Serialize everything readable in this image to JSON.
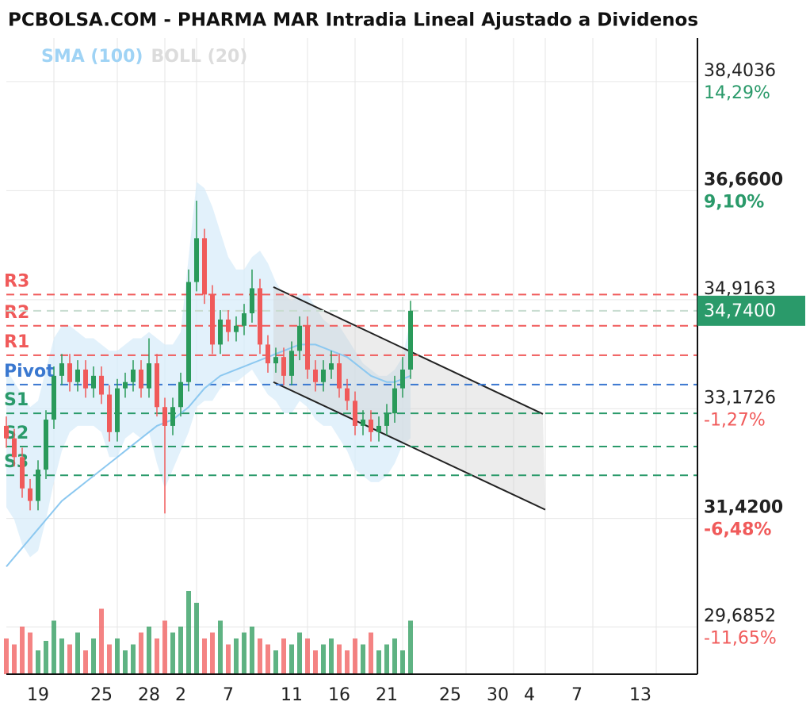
{
  "chart_data": {
    "type": "candlestick",
    "title": "PCBOLSA.COM - PHARMA MAR Intradia Lineal Ajustado a Dividenos",
    "legend": [
      {
        "name": "SMA (100)",
        "color": "#9fd3f5"
      },
      {
        "name": "BOLL (20)",
        "color": "#dcdcdc"
      }
    ],
    "up_color": "#2a9a5a",
    "down_color": "#f05a5a",
    "x": [
      -2,
      -1.5,
      -1,
      -0.5,
      0,
      0.5,
      1,
      1.5,
      2,
      2.5,
      3,
      3.5,
      4,
      4.5,
      5,
      5.5,
      6,
      6.5,
      7,
      7.5,
      8,
      8.5,
      9,
      9.5,
      10,
      10.5,
      11,
      11.5,
      12,
      12.5,
      13,
      13.5,
      14,
      14.5,
      15,
      15.5,
      16,
      16.5,
      17,
      17.5,
      18,
      18.5,
      19,
      19.5,
      20,
      20.5,
      21,
      21.5,
      22,
      22.5,
      23,
      23.5
    ],
    "open": [
      32.9,
      32.7,
      32.4,
      31.9,
      31.7,
      32.2,
      33.0,
      33.7,
      33.9,
      33.6,
      33.8,
      33.5,
      33.7,
      33.4,
      32.8,
      33.5,
      33.6,
      33.8,
      33.5,
      33.9,
      33.2,
      32.9,
      33.2,
      33.6,
      35.2,
      35.9,
      35.0,
      34.2,
      34.6,
      34.4,
      34.5,
      34.7,
      35.1,
      34.2,
      33.9,
      34.0,
      33.7,
      34.1,
      34.5,
      33.8,
      33.6,
      33.8,
      33.9,
      33.5,
      33.3,
      32.9,
      33.0,
      32.8,
      32.9,
      33.1,
      33.5,
      33.8
    ],
    "high": [
      33.05,
      32.85,
      32.55,
      32.05,
      32.35,
      33.15,
      33.85,
      34.05,
      34.05,
      33.95,
      33.95,
      33.85,
      33.85,
      33.55,
      33.65,
      33.75,
      33.95,
      33.95,
      34.3,
      34.05,
      33.35,
      33.35,
      33.75,
      35.4,
      36.5,
      36.05,
      35.15,
      34.75,
      34.75,
      34.65,
      34.85,
      35.4,
      35.25,
      34.35,
      34.15,
      34.15,
      34.25,
      34.65,
      34.65,
      33.95,
      33.95,
      34.1,
      34.05,
      33.65,
      33.45,
      33.15,
      33.15,
      33.05,
      33.25,
      33.7,
      34.0,
      34.9
    ],
    "low": [
      32.55,
      32.25,
      31.75,
      31.55,
      31.55,
      32.05,
      32.85,
      33.55,
      33.45,
      33.45,
      33.35,
      33.35,
      33.25,
      32.65,
      32.65,
      33.35,
      33.45,
      33.35,
      33.35,
      33.05,
      31.5,
      32.75,
      33.05,
      33.45,
      35.05,
      34.85,
      34.05,
      34.05,
      34.25,
      34.25,
      34.35,
      34.55,
      34.05,
      33.75,
      33.75,
      33.55,
      33.55,
      33.95,
      33.65,
      33.45,
      33.45,
      33.65,
      33.35,
      33.15,
      32.75,
      32.75,
      32.65,
      32.65,
      32.75,
      32.95,
      33.35,
      33.65
    ],
    "close": [
      32.7,
      32.4,
      31.9,
      31.7,
      32.2,
      33.0,
      33.7,
      33.9,
      33.6,
      33.8,
      33.5,
      33.7,
      33.4,
      32.8,
      33.5,
      33.6,
      33.8,
      33.5,
      33.9,
      33.2,
      32.9,
      33.2,
      33.6,
      35.2,
      35.9,
      35.0,
      34.2,
      34.6,
      34.4,
      34.5,
      34.7,
      35.1,
      34.2,
      33.9,
      34.0,
      33.7,
      34.1,
      34.5,
      33.8,
      33.6,
      33.8,
      33.9,
      33.5,
      33.3,
      32.9,
      33.0,
      32.8,
      32.9,
      33.1,
      33.5,
      33.8,
      34.74
    ],
    "volume": [
      30,
      25,
      40,
      35,
      20,
      28,
      45,
      30,
      25,
      35,
      20,
      30,
      55,
      25,
      30,
      20,
      25,
      35,
      40,
      30,
      45,
      35,
      40,
      70,
      60,
      30,
      35,
      45,
      25,
      30,
      35,
      40,
      30,
      25,
      20,
      30,
      25,
      35,
      30,
      20,
      25,
      30,
      25,
      20,
      30,
      25,
      35,
      20,
      25,
      30,
      20,
      45
    ],
    "vlim": [
      0,
      100
    ],
    "sma": [
      30.65,
      30.8,
      30.95,
      31.1,
      31.25,
      31.4,
      31.55,
      31.7,
      31.8,
      31.9,
      32.0,
      32.1,
      32.2,
      32.3,
      32.4,
      32.5,
      32.6,
      32.7,
      32.8,
      32.9,
      32.95,
      33.0,
      33.1,
      33.2,
      33.35,
      33.5,
      33.6,
      33.7,
      33.75,
      33.8,
      33.85,
      33.9,
      33.95,
      34.0,
      34.05,
      34.1,
      34.15,
      34.2,
      34.2,
      34.2,
      34.15,
      34.1,
      34.05,
      34.0,
      33.9,
      33.8,
      33.7,
      33.65,
      33.6,
      33.6,
      33.65,
      33.7
    ],
    "boll_upper": [
      33.8,
      33.6,
      33.4,
      33.2,
      33.3,
      33.8,
      34.3,
      34.5,
      34.5,
      34.4,
      34.3,
      34.3,
      34.2,
      34.1,
      34.1,
      34.2,
      34.3,
      34.3,
      34.4,
      34.3,
      34.2,
      34.2,
      34.4,
      35.6,
      36.8,
      36.7,
      36.4,
      36.0,
      35.6,
      35.4,
      35.4,
      35.6,
      35.7,
      35.5,
      35.2,
      35.0,
      34.9,
      35.0,
      35.0,
      34.8,
      34.6,
      34.5,
      34.5,
      34.3,
      34.1,
      33.9,
      33.8,
      33.7,
      33.7,
      33.8,
      34.0,
      34.6
    ],
    "boll_lower": [
      31.6,
      31.4,
      31.0,
      30.8,
      30.9,
      31.4,
      32.0,
      32.5,
      32.8,
      32.9,
      32.9,
      32.9,
      32.8,
      32.4,
      32.4,
      32.7,
      32.8,
      32.7,
      32.8,
      32.3,
      31.9,
      32.2,
      32.5,
      32.8,
      33.2,
      33.3,
      33.3,
      33.5,
      33.6,
      33.6,
      33.7,
      33.8,
      33.6,
      33.4,
      33.3,
      33.1,
      33.1,
      33.3,
      33.2,
      33.0,
      32.9,
      32.9,
      32.7,
      32.5,
      32.2,
      32.1,
      32.0,
      32.0,
      32.1,
      32.3,
      32.6,
      32.7
    ],
    "channel": {
      "upper": {
        "x": [
          14.85,
          31.85
        ],
        "values": [
          35.12,
          33.09
        ]
      },
      "lower": {
        "x": [
          14.85,
          32
        ],
        "values": [
          33.6,
          31.56
        ]
      }
    },
    "pivots": [
      {
        "name": "R3",
        "value": 35.0,
        "color": "#f05a5a"
      },
      {
        "name": "R2",
        "value": 34.5,
        "color": "#f05a5a"
      },
      {
        "name": "R1",
        "value": 34.03,
        "color": "#f05a5a"
      },
      {
        "name": "Pivot",
        "value": 33.56,
        "color": "#3a78d0"
      },
      {
        "name": "S1",
        "value": 33.1,
        "color": "#2a9a6a"
      },
      {
        "name": "S2",
        "value": 32.57,
        "color": "#2a9a6a"
      },
      {
        "name": "S3",
        "value": 32.11,
        "color": "#2a9a6a"
      }
    ],
    "last": {
      "value": 34.74,
      "label": "34,7400",
      "color": "#2a9a6a"
    },
    "xlim": [
      -2,
      41.6
    ],
    "xticks": [
      {
        "value": 0,
        "label": "19"
      },
      {
        "value": 4,
        "label": "25"
      },
      {
        "value": 7,
        "label": "28"
      },
      {
        "value": 9,
        "label": "2"
      },
      {
        "value": 12,
        "label": "7"
      },
      {
        "value": 16,
        "label": "11"
      },
      {
        "value": 19,
        "label": "16"
      },
      {
        "value": 22,
        "label": "21"
      },
      {
        "value": 26,
        "label": "25"
      },
      {
        "value": 29,
        "label": "30"
      },
      {
        "value": 31,
        "label": "4"
      },
      {
        "value": 34,
        "label": "7"
      },
      {
        "value": 38,
        "label": "13"
      }
    ],
    "ylim": [
      28.93,
      39.1
    ],
    "yticks": [
      {
        "value": 38.4036,
        "label": "38,4036",
        "pct": "14,29%",
        "pct_color": "#2a9a6a",
        "bold": false
      },
      {
        "value": 36.66,
        "label": "36,6600",
        "pct": "9,10%",
        "pct_color": "#2a9a6a",
        "bold": true
      },
      {
        "value": 34.9163,
        "label": "34,9163",
        "bold": false
      },
      {
        "value": 33.1726,
        "label": "33,1726",
        "pct": "-1,27%",
        "pct_color": "#f05a5a",
        "bold": false
      },
      {
        "value": 31.42,
        "label": "31,4200",
        "pct": "-6,48%",
        "pct_color": "#f05a5a",
        "bold": true
      },
      {
        "value": 29.6852,
        "label": "29,6852",
        "pct": "-11,65%",
        "pct_color": "#f05a5a",
        "bold": false
      }
    ],
    "grid": true
  }
}
